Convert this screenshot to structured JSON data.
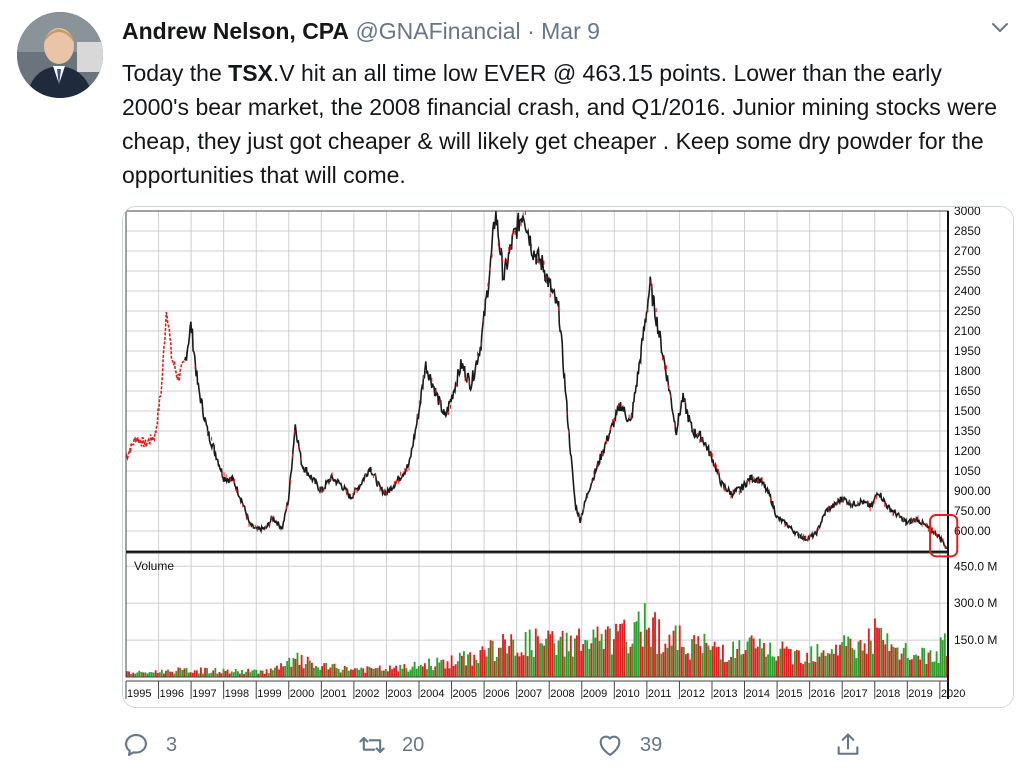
{
  "tweet": {
    "author_name": "Andrew Nelson, CPA",
    "handle": "@GNAFinancial",
    "separator": "·",
    "date": "Mar 9",
    "text_prefix": "Today the ",
    "text_bold": "TSX",
    "text_rest": ".V hit an all time low EVER @ 463.15 points. Lower than the early 2000's bear market, the 2008 financial crash, and Q1/2016. Junior mining stocks were cheap, they just got cheaper & will likely get cheaper . Keep some dry powder for the opportunities that will come."
  },
  "actions": {
    "reply_count": "3",
    "retweet_count": "20",
    "like_count": "39"
  },
  "icons": {
    "reply": "speech-bubble-icon",
    "retweet": "retweet-arrows-icon",
    "like": "heart-icon",
    "share": "share-upload-icon",
    "menu": "chevron-down-icon"
  },
  "colors": {
    "text": "#14171a",
    "secondary": "#657786",
    "border": "#ccd6dd",
    "price_line": "#1a1a1a",
    "price_early": "#e02020",
    "volume_up": "#2fa02f",
    "volume_down": "#e02020",
    "highlight_box": "#e02020"
  },
  "chart_data": {
    "type": "line",
    "title": "",
    "xlabel": "",
    "ylabel": "",
    "x_ticks": [
      "1995",
      "1996",
      "1997",
      "1998",
      "1999",
      "2000",
      "2001",
      "2002",
      "2003",
      "2004",
      "2005",
      "2006",
      "2007",
      "2008",
      "2009",
      "2010",
      "2011",
      "2012",
      "2013",
      "2014",
      "2015",
      "2016",
      "2017",
      "2018",
      "2019",
      "2020"
    ],
    "price_ticks": [
      "3000",
      "2850",
      "2700",
      "2550",
      "2400",
      "2250",
      "2100",
      "1950",
      "1800",
      "1650",
      "1500",
      "1350",
      "1200",
      "1050",
      "900.00",
      "750.00",
      "600.00"
    ],
    "price_ylim": [
      450,
      3000
    ],
    "volume_label": "Volume",
    "volume_ticks": [
      "450.0 M",
      "300.0 M",
      "150.0 M"
    ],
    "volume_ylim": [
      0,
      500
    ],
    "grid": true,
    "annotation": "red box around the 2020 all-time low",
    "series": [
      {
        "kind": "price",
        "points": [
          [
            1995.0,
            1150
          ],
          [
            1995.3,
            1300
          ],
          [
            1995.6,
            1250
          ],
          [
            1995.9,
            1320
          ],
          [
            1996.1,
            1700
          ],
          [
            1996.25,
            2300
          ],
          [
            1996.4,
            1900
          ],
          [
            1996.6,
            1750
          ],
          [
            1996.8,
            1850
          ],
          [
            1997.0,
            2150
          ],
          [
            1997.2,
            1700
          ],
          [
            1997.5,
            1350
          ],
          [
            1997.8,
            1150
          ],
          [
            1998.0,
            1000
          ],
          [
            1998.3,
            980
          ],
          [
            1998.6,
            800
          ],
          [
            1998.8,
            650
          ],
          [
            1999.0,
            610
          ],
          [
            1999.3,
            620
          ],
          [
            1999.5,
            700
          ],
          [
            1999.8,
            620
          ],
          [
            2000.0,
            850
          ],
          [
            2000.2,
            1400
          ],
          [
            2000.4,
            1100
          ],
          [
            2000.7,
            1000
          ],
          [
            2001.0,
            900
          ],
          [
            2001.3,
            1000
          ],
          [
            2001.6,
            950
          ],
          [
            2001.9,
            850
          ],
          [
            2002.2,
            950
          ],
          [
            2002.5,
            1080
          ],
          [
            2002.8,
            920
          ],
          [
            2003.0,
            880
          ],
          [
            2003.4,
            1000
          ],
          [
            2003.7,
            1100
          ],
          [
            2004.0,
            1500
          ],
          [
            2004.2,
            1850
          ],
          [
            2004.5,
            1650
          ],
          [
            2004.8,
            1450
          ],
          [
            2005.0,
            1600
          ],
          [
            2005.3,
            1850
          ],
          [
            2005.6,
            1700
          ],
          [
            2005.9,
            2000
          ],
          [
            2006.2,
            2600
          ],
          [
            2006.35,
            3000
          ],
          [
            2006.6,
            2500
          ],
          [
            2006.9,
            2800
          ],
          [
            2007.2,
            3000
          ],
          [
            2007.5,
            2700
          ],
          [
            2007.8,
            2600
          ],
          [
            2008.0,
            2450
          ],
          [
            2008.3,
            2250
          ],
          [
            2008.6,
            1350
          ],
          [
            2008.8,
            800
          ],
          [
            2008.95,
            680
          ],
          [
            2009.2,
            900
          ],
          [
            2009.5,
            1100
          ],
          [
            2009.8,
            1300
          ],
          [
            2010.2,
            1550
          ],
          [
            2010.5,
            1400
          ],
          [
            2010.8,
            1900
          ],
          [
            2011.1,
            2450
          ],
          [
            2011.4,
            2050
          ],
          [
            2011.7,
            1650
          ],
          [
            2011.9,
            1350
          ],
          [
            2012.1,
            1600
          ],
          [
            2012.4,
            1350
          ],
          [
            2012.7,
            1300
          ],
          [
            2013.0,
            1150
          ],
          [
            2013.3,
            950
          ],
          [
            2013.6,
            880
          ],
          [
            2013.9,
            920
          ],
          [
            2014.2,
            1000
          ],
          [
            2014.5,
            980
          ],
          [
            2014.8,
            850
          ],
          [
            2015.0,
            700
          ],
          [
            2015.3,
            650
          ],
          [
            2015.6,
            580
          ],
          [
            2015.9,
            540
          ],
          [
            2016.2,
            580
          ],
          [
            2016.5,
            750
          ],
          [
            2016.8,
            800
          ],
          [
            2017.0,
            850
          ],
          [
            2017.3,
            800
          ],
          [
            2017.6,
            820
          ],
          [
            2017.9,
            780
          ],
          [
            2018.1,
            900
          ],
          [
            2018.4,
            780
          ],
          [
            2018.7,
            720
          ],
          [
            2019.0,
            660
          ],
          [
            2019.3,
            690
          ],
          [
            2019.6,
            630
          ],
          [
            2019.9,
            580
          ],
          [
            2020.1,
            520
          ],
          [
            2020.2,
            470
          ]
        ]
      },
      {
        "kind": "volume",
        "points": [
          [
            1995.5,
            20
          ],
          [
            1996.5,
            30
          ],
          [
            1997.5,
            30
          ],
          [
            1998.5,
            25
          ],
          [
            1999.5,
            30
          ],
          [
            2000.3,
            80
          ],
          [
            2000.8,
            50
          ],
          [
            2001.5,
            40
          ],
          [
            2002.5,
            35
          ],
          [
            2003.5,
            40
          ],
          [
            2004.3,
            60
          ],
          [
            2005.0,
            70
          ],
          [
            2005.6,
            90
          ],
          [
            2006.2,
            130
          ],
          [
            2006.7,
            140
          ],
          [
            2007.2,
            150
          ],
          [
            2007.7,
            160
          ],
          [
            2008.2,
            150
          ],
          [
            2008.7,
            170
          ],
          [
            2009.2,
            160
          ],
          [
            2009.7,
            170
          ],
          [
            2010.2,
            180
          ],
          [
            2010.7,
            200
          ],
          [
            2011.0,
            300
          ],
          [
            2011.3,
            200
          ],
          [
            2011.7,
            170
          ],
          [
            2012.2,
            160
          ],
          [
            2012.7,
            140
          ],
          [
            2013.2,
            130
          ],
          [
            2013.7,
            120
          ],
          [
            2014.2,
            140
          ],
          [
            2014.7,
            120
          ],
          [
            2015.2,
            110
          ],
          [
            2015.7,
            100
          ],
          [
            2016.2,
            130
          ],
          [
            2016.7,
            140
          ],
          [
            2017.2,
            150
          ],
          [
            2017.6,
            140
          ],
          [
            2018.0,
            200
          ],
          [
            2018.4,
            130
          ],
          [
            2018.8,
            110
          ],
          [
            2019.3,
            100
          ],
          [
            2019.8,
            90
          ],
          [
            2020.15,
            160
          ]
        ]
      }
    ]
  }
}
